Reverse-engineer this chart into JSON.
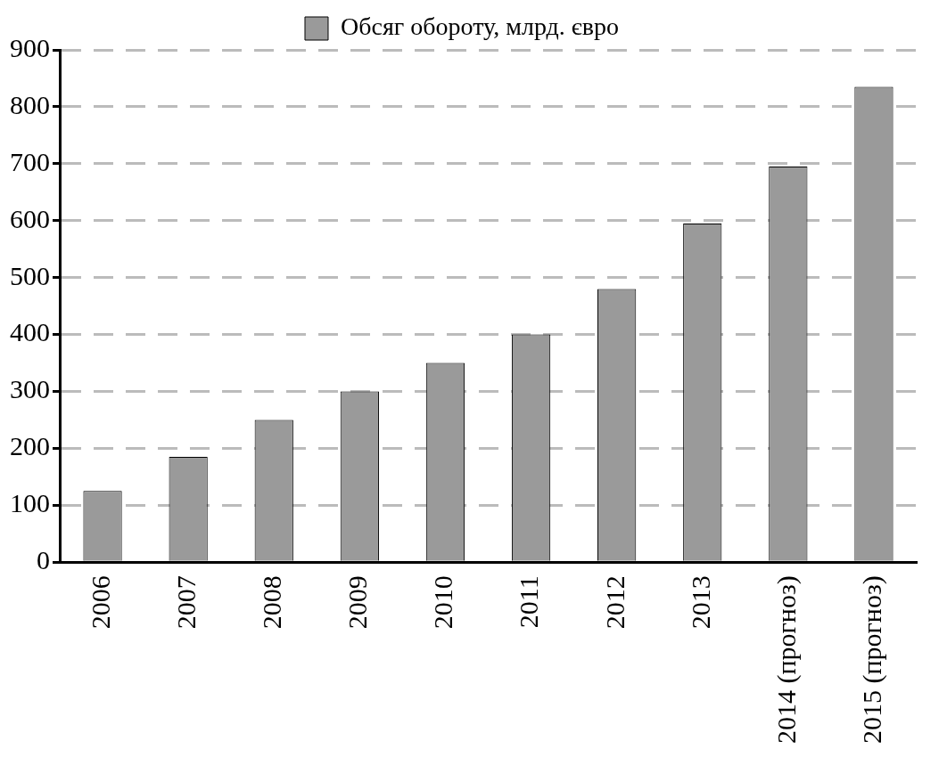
{
  "chart_data": {
    "type": "bar",
    "categories": [
      "2006",
      "2007",
      "2008",
      "2009",
      "2010",
      "2011",
      "2012",
      "2013",
      "2014 (прогноз)",
      "2015 (прогноз)"
    ],
    "series": [
      {
        "name": "Обсяг обороту, млрд. євро",
        "color": "#9a9a9a",
        "values": [
          125,
          185,
          250,
          300,
          350,
          400,
          480,
          595,
          695,
          835
        ]
      }
    ],
    "ylim": [
      0,
      900
    ],
    "yticks": [
      0,
      100,
      200,
      300,
      400,
      500,
      600,
      700,
      800,
      900
    ],
    "grid": "y",
    "legend": "top"
  }
}
